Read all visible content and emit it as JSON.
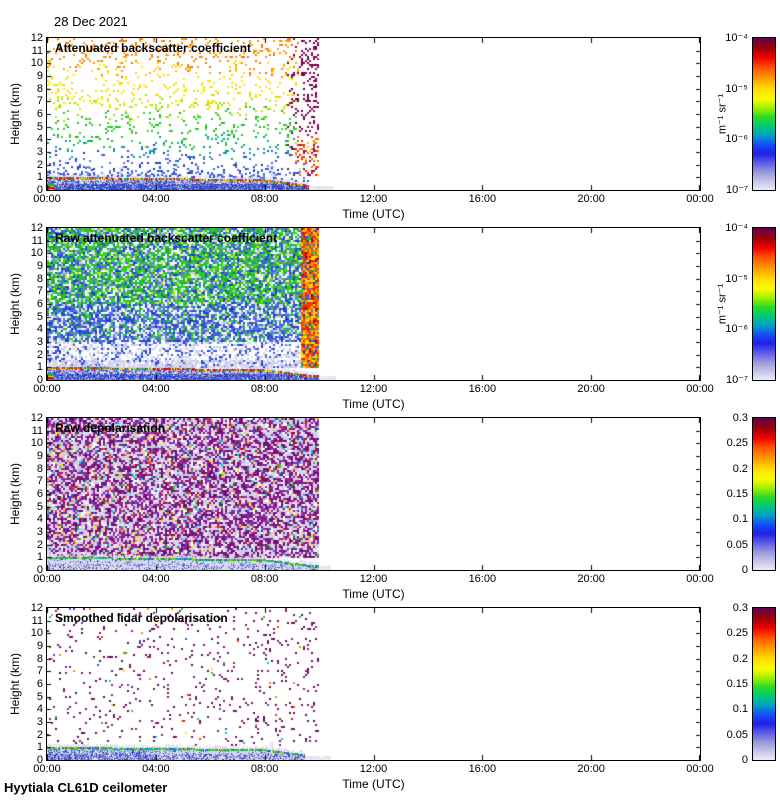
{
  "chart_data": {
    "type": "heatmap",
    "figure_title": "28 Dec 2021",
    "footer": "Hyytiala CL61D ceilometer",
    "x_axis": {
      "label": "Time (UTC)",
      "tick_hours": [
        0,
        4,
        8,
        12,
        16,
        20,
        24
      ],
      "tick_labels": [
        "00:00",
        "04:00",
        "08:00",
        "12:00",
        "16:00",
        "20:00",
        "00:00"
      ],
      "range_hours": [
        0,
        24
      ],
      "data_end_hour": 10,
      "grid": false
    },
    "y_axis": {
      "label": "Height (km)",
      "tick_values": [
        0,
        1,
        2,
        3,
        4,
        5,
        6,
        7,
        8,
        9,
        10,
        11,
        12
      ],
      "range_km": [
        0,
        12
      ]
    },
    "colormap_stops": [
      {
        "pos": 0.0,
        "color": "#640050"
      },
      {
        "pos": 0.06,
        "color": "#96000A"
      },
      {
        "pos": 0.13,
        "color": "#F00000"
      },
      {
        "pos": 0.2,
        "color": "#FF5A00"
      },
      {
        "pos": 0.27,
        "color": "#FFA000"
      },
      {
        "pos": 0.34,
        "color": "#FFE100"
      },
      {
        "pos": 0.4,
        "color": "#F8FC00"
      },
      {
        "pos": 0.46,
        "color": "#A0F000"
      },
      {
        "pos": 0.52,
        "color": "#28DC28"
      },
      {
        "pos": 0.58,
        "color": "#00C878"
      },
      {
        "pos": 0.64,
        "color": "#00A0C8"
      },
      {
        "pos": 0.7,
        "color": "#1450FA"
      },
      {
        "pos": 0.76,
        "color": "#2020E6"
      },
      {
        "pos": 0.82,
        "color": "#5A5AE6"
      },
      {
        "pos": 0.88,
        "color": "#9696DC"
      },
      {
        "pos": 0.94,
        "color": "#C3C3E8"
      },
      {
        "pos": 1.0,
        "color": "#EBEBF5"
      }
    ],
    "panels": [
      {
        "title": "Attenuated backscatter coefficient",
        "render": "sparse_backscatter",
        "seed": 101,
        "colorbar": {
          "scale": "log",
          "tick_labels": [
            "10⁻⁴",
            "10⁻⁵",
            "10⁻⁶",
            "10⁻⁷"
          ],
          "unit": "m⁻¹ sr⁻¹",
          "range": [
            "1e-7",
            "1e-4"
          ]
        },
        "zones": "sparse speckles colored by height: orange 10-12 km, yellow 7-10, green 4-7, blue 1.2-4; maroon noise burst 08:45-10:00; boundary layer 0-1 km blue with red aerosol top line, pale fuzz above, data ends 10:00"
      },
      {
        "title": "Raw attenuated backscatter coefficient",
        "render": "dense_backscatter",
        "seed": 202,
        "colorbar": {
          "scale": "log",
          "tick_labels": [
            "10⁻⁴",
            "10⁻⁵",
            "10⁻⁶",
            "10⁻⁷"
          ],
          "unit": "m⁻¹ sr⁻¹",
          "range": [
            "1e-7",
            "1e-4"
          ]
        },
        "zones": "dense noise: green-dominant 6-12 km, blue-dominant 3-6 km, pale lavender 1-3 km; hot red/orange/yellow column 09:20-10:00; boundary layer 0-1 km; data ends 10:00"
      },
      {
        "title": "Raw depolarisation",
        "render": "dense_depol",
        "seed": 303,
        "colorbar": {
          "scale": "linear",
          "tick_labels": [
            "0.3",
            "0.25",
            "0.2",
            "0.15",
            "0.1",
            "0.05",
            "0"
          ],
          "unit": "",
          "range": [
            "0",
            "0.3"
          ]
        },
        "zones": "dense magenta + pale-grey speckle 1-12 km with rare bright specks; pale boundary layer 0-1 km with blue speckles and green top line; data ends 10:00"
      },
      {
        "title": "Smoothed lidar depolarisation",
        "render": "sparse_depol",
        "seed": 404,
        "colorbar": {
          "scale": "linear",
          "tick_labels": [
            "0.3",
            "0.25",
            "0.2",
            "0.15",
            "0.1",
            "0.05",
            "0"
          ],
          "unit": "",
          "range": [
            "0",
            "0.3"
          ]
        },
        "zones": "sparse magenta dots 1-12 km; blue/lavender boundary layer 0-1 km with green top line; data ends 10:00"
      }
    ],
    "palettes": {
      "orange": [
        "#FF8C00",
        "#FFA014",
        "#F07800"
      ],
      "yellow": [
        "#FFE000",
        "#FFD200",
        "#EEF000"
      ],
      "yellow_green": [
        "#C0E800",
        "#A8E000"
      ],
      "green": [
        "#28C828",
        "#3CD23C",
        "#1EB41E"
      ],
      "teal": [
        "#00B478",
        "#00A08C"
      ],
      "blue": [
        "#2E4EE0",
        "#4462E8",
        "#1E3CC8",
        "#5A78E8"
      ],
      "lavender": [
        "#D4D4EA",
        "#C8C8E6",
        "#DCDCEE"
      ],
      "maroon": [
        "#780050",
        "#8C0A5A",
        "#640046"
      ],
      "hot_low": [
        "#E82800",
        "#FF6400",
        "#FFC800",
        "#8C0A5A"
      ],
      "stripe_red": [
        "#E81400",
        "#F03C00"
      ],
      "stripe_orange": [
        "#FF7800",
        "#FF9600"
      ],
      "purple": [
        "#8C1E8C",
        "#7A107A",
        "#A028A0",
        "#6E0A6E"
      ],
      "purple_dark": [
        "#781464",
        "#8C1E78",
        "#5F0E50"
      ],
      "specks": [
        "#FF3C00",
        "#FFE000",
        "#28C828",
        "#00C8C8",
        "#3250FF",
        "#FF8C00"
      ],
      "band_blue": [
        "#3C50D2",
        "#2838B4",
        "#5A6EE0"
      ],
      "line_hot": [
        "#E00000",
        "#DC0000",
        "#E81400",
        "#FF7800",
        "#FFE000",
        "#28B428",
        "#00B4B4"
      ],
      "line_green": [
        "#28B428",
        "#28B428",
        "#A0E000",
        "#3250E0",
        "#00B4B4"
      ],
      "blob_bands": [
        [
          "#28B428",
          0.34,
          0.56
        ],
        [
          "#FFE000",
          0.24,
          0.34
        ],
        [
          "#E00000",
          0.1,
          0.24
        ],
        [
          "#FF7800",
          0.03,
          0.1
        ]
      ],
      "band_lavender": "#D8D8EC",
      "tail": "#E2E2F0"
    }
  }
}
